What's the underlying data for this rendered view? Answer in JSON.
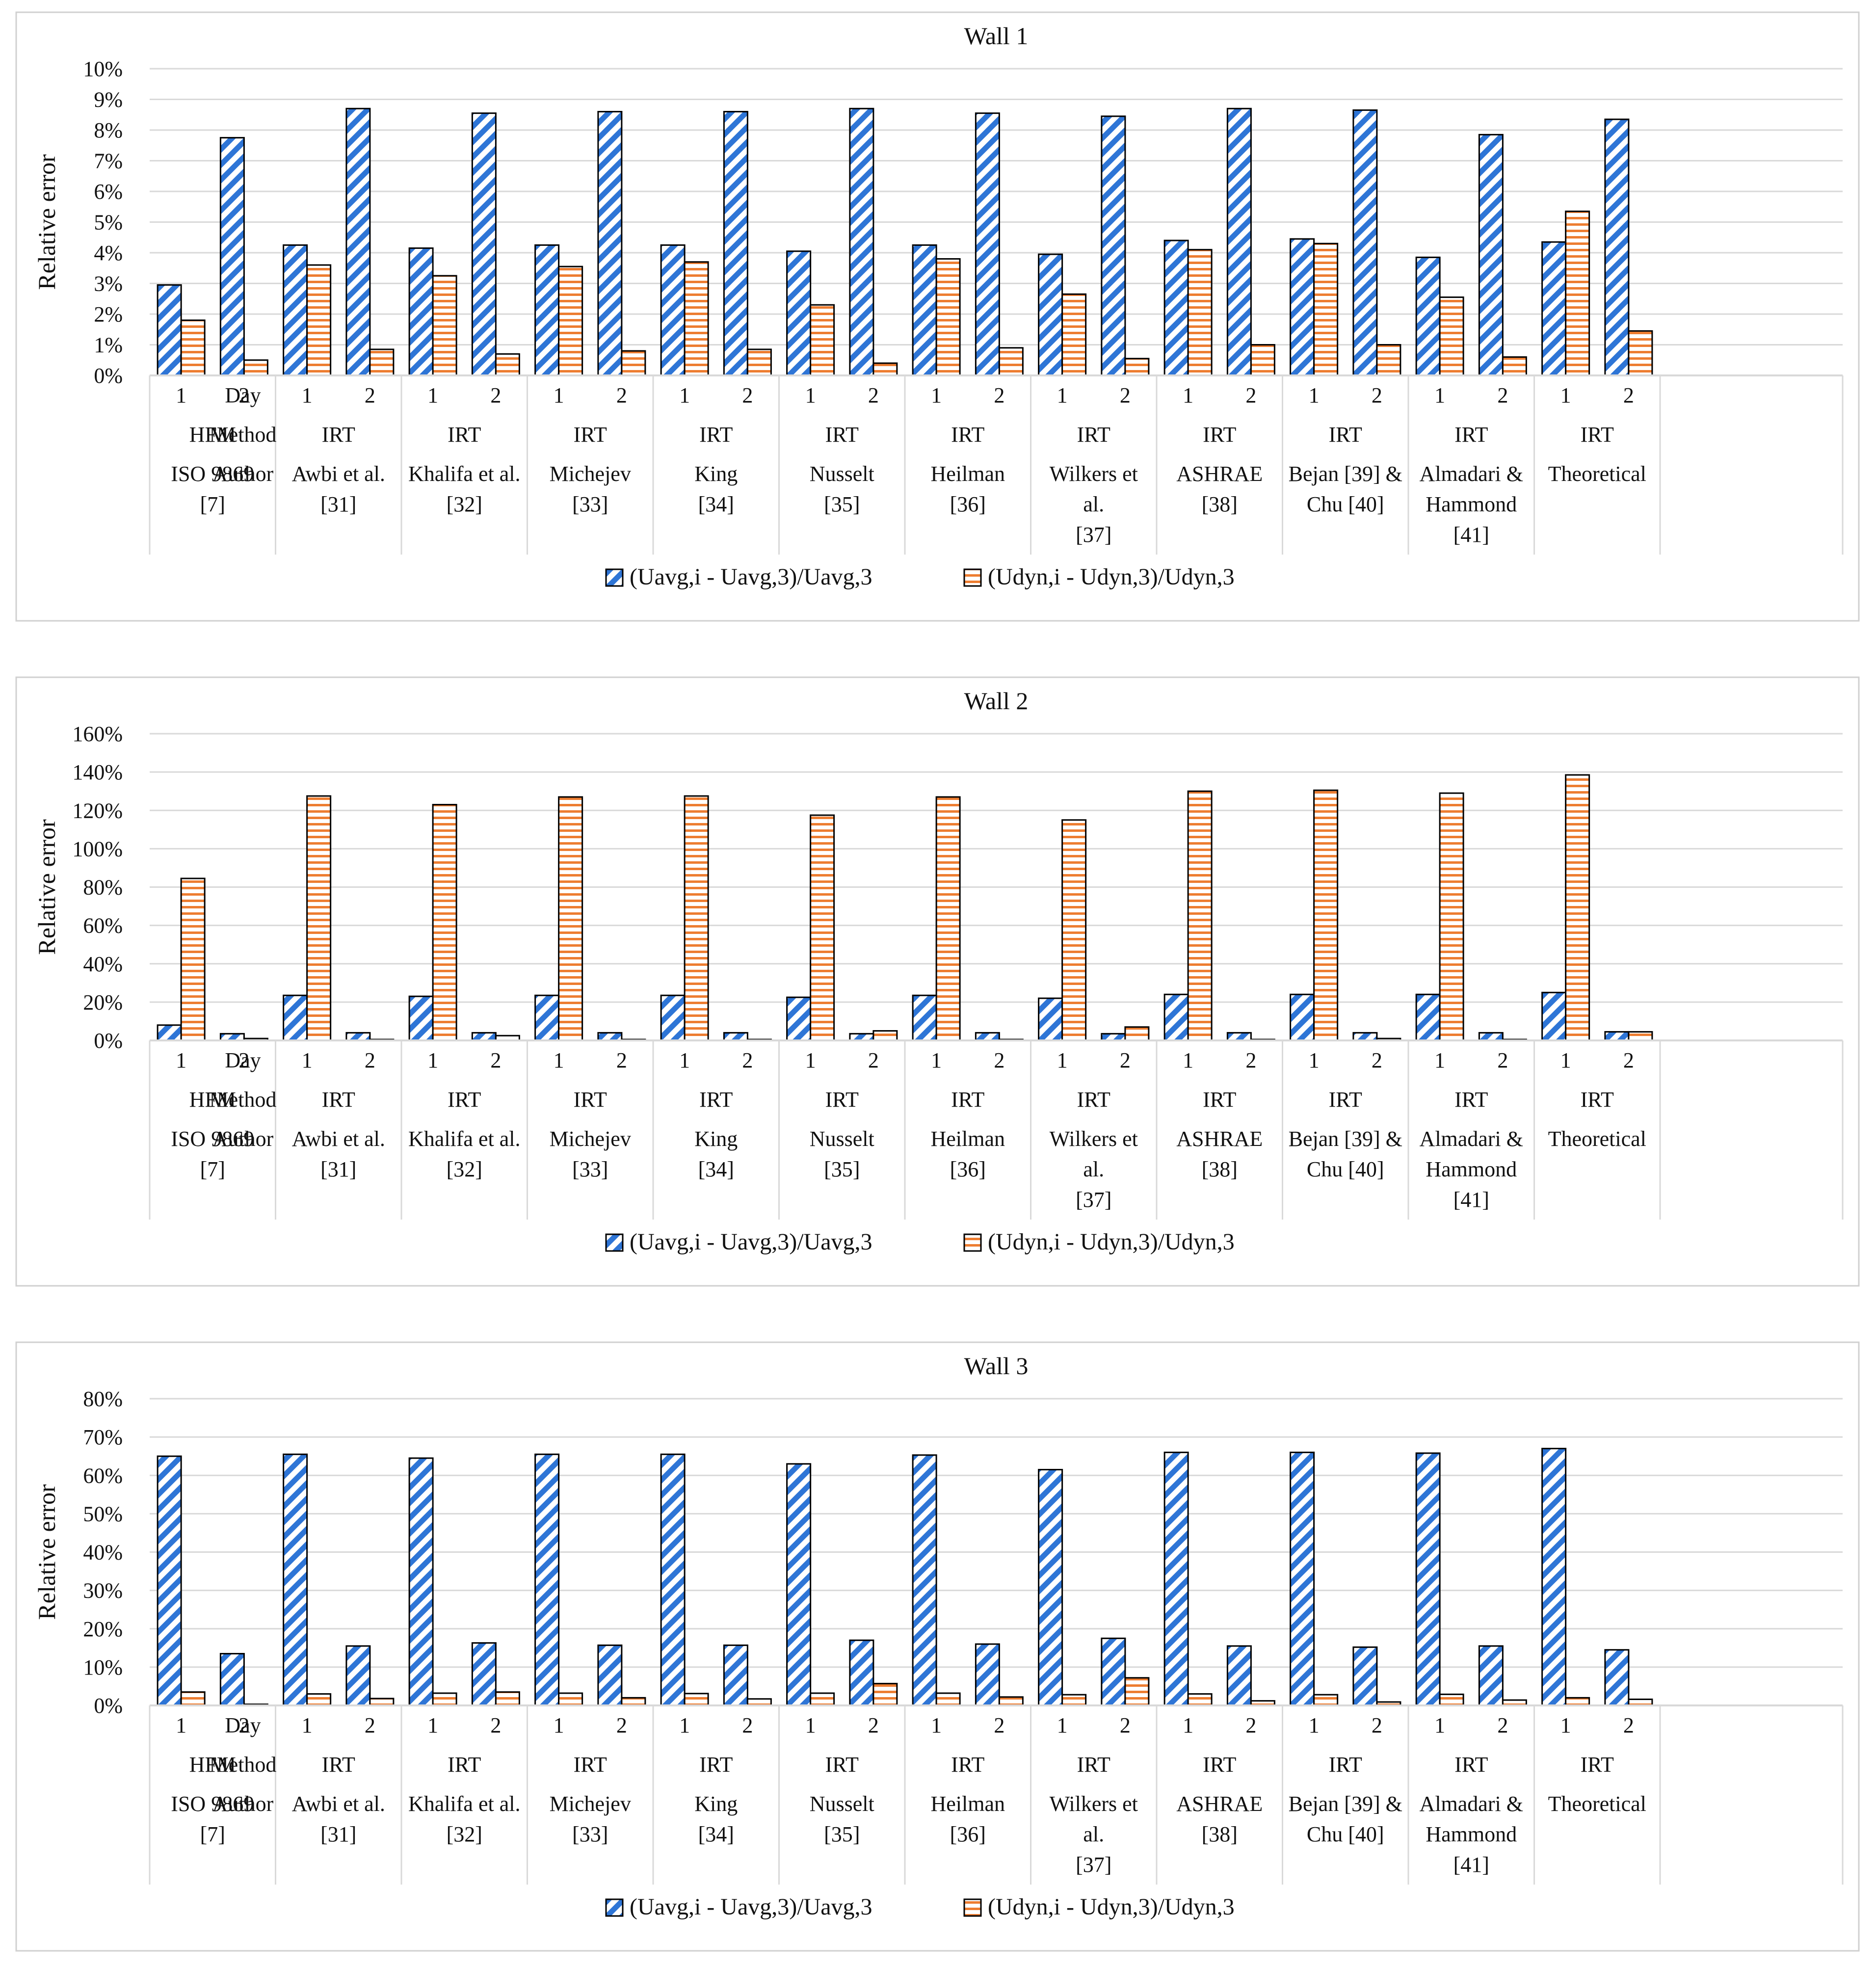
{
  "legend_labels": {
    "avg": "(Uavg,i - Uavg,3)/Uavg,3",
    "dyn": "(Udyn,i - Udyn,3)/Udyn,3"
  },
  "colors": {
    "avg": "#2e75d6",
    "dyn": "#ed7d31",
    "grid": "#d9d9d9",
    "border": "#d0d0d0",
    "bar_edge": "#000000"
  },
  "row_labels": [
    "Day",
    "Method",
    "Author"
  ],
  "days": [
    "1",
    "2"
  ],
  "groups": [
    {
      "method": "HFM",
      "author": [
        "ISO 9869",
        "[7]"
      ]
    },
    {
      "method": "IRT",
      "author": [
        "Awbi et al.",
        "[31]"
      ]
    },
    {
      "method": "IRT",
      "author": [
        "Khalifa et al.",
        "[32]"
      ]
    },
    {
      "method": "IRT",
      "author": [
        "Michejev",
        "[33]"
      ]
    },
    {
      "method": "IRT",
      "author": [
        "King",
        "[34]"
      ]
    },
    {
      "method": "IRT",
      "author": [
        "Nusselt",
        "[35]"
      ]
    },
    {
      "method": "IRT",
      "author": [
        "Heilman",
        "[36]"
      ]
    },
    {
      "method": "IRT",
      "author": [
        "Wilkers et",
        "al.",
        "[37]"
      ]
    },
    {
      "method": "IRT",
      "author": [
        "ASHRAE",
        "[38]"
      ]
    },
    {
      "method": "IRT",
      "author": [
        "Bejan [39] &",
        "Chu [40]"
      ]
    },
    {
      "method": "IRT",
      "author": [
        "Almadari &",
        "Hammond",
        "[41]"
      ]
    },
    {
      "method": "IRT",
      "author": [
        "Theoretical"
      ]
    }
  ],
  "chart_data": [
    {
      "type": "bar",
      "title": "Wall 1",
      "ylabel": "Relative error",
      "ylim": [
        0,
        10
      ],
      "ytick_step": 1,
      "yticks": [
        "0%",
        "1%",
        "2%",
        "3%",
        "4%",
        "5%",
        "6%",
        "7%",
        "8%",
        "9%",
        "10%"
      ],
      "series": [
        {
          "name": "(Uavg,i - Uavg,3)/Uavg,3",
          "values": [
            2.95,
            7.75,
            4.25,
            8.7,
            4.15,
            8.55,
            4.25,
            8.6,
            4.25,
            8.6,
            4.05,
            8.7,
            4.25,
            8.55,
            3.95,
            8.45,
            4.4,
            8.7,
            4.45,
            8.65,
            3.85,
            7.85,
            4.35,
            8.35
          ]
        },
        {
          "name": "(Udyn,i - Udyn,3)/Udyn,3",
          "values": [
            1.8,
            0.5,
            3.6,
            0.85,
            3.25,
            0.7,
            3.55,
            0.8,
            3.7,
            0.85,
            2.3,
            0.4,
            3.8,
            0.9,
            2.65,
            0.55,
            4.1,
            1.0,
            4.3,
            1.0,
            2.55,
            0.6,
            5.35,
            1.45
          ]
        }
      ]
    },
    {
      "type": "bar",
      "title": "Wall 2",
      "ylabel": "Relative error",
      "ylim": [
        0,
        160
      ],
      "ytick_step": 20,
      "yticks": [
        "0%",
        "20%",
        "40%",
        "60%",
        "80%",
        "100%",
        "120%",
        "140%",
        "160%"
      ],
      "series": [
        {
          "name": "(Uavg,i - Uavg,3)/Uavg,3",
          "values": [
            8,
            3.5,
            23.5,
            4,
            23,
            4,
            23.5,
            4,
            23.5,
            4,
            22.5,
            3.5,
            23.5,
            4,
            22,
            3.5,
            24,
            4,
            24,
            4,
            24,
            4,
            25,
            4.5
          ]
        },
        {
          "name": "(Udyn,i - Udyn,3)/Udyn,3",
          "values": [
            84.5,
            1,
            127.5,
            0.5,
            123,
            2.5,
            127,
            0.5,
            127.5,
            0.5,
            117.5,
            5,
            127,
            0.5,
            115,
            7,
            130,
            0.5,
            130.5,
            1,
            129,
            0.5,
            138.5,
            4.5
          ]
        }
      ]
    },
    {
      "type": "bar",
      "title": "Wall 3",
      "ylabel": "Relative error",
      "ylim": [
        0,
        80
      ],
      "ytick_step": 10,
      "yticks": [
        "0%",
        "10%",
        "20%",
        "30%",
        "40%",
        "50%",
        "60%",
        "70%",
        "80%"
      ],
      "series": [
        {
          "name": "(Uavg,i - Uavg,3)/Uavg,3",
          "values": [
            65,
            13.5,
            65.5,
            15.5,
            64.5,
            16.3,
            65.5,
            15.7,
            65.5,
            15.7,
            63,
            17,
            65.3,
            16,
            61.5,
            17.5,
            66,
            15.5,
            66,
            15.2,
            65.8,
            15.5,
            67,
            14.5
          ]
        },
        {
          "name": "(Udyn,i - Udyn,3)/Udyn,3",
          "values": [
            3.5,
            0.3,
            3,
            1.8,
            3.2,
            3.5,
            3.2,
            2,
            3.1,
            1.7,
            3.2,
            5.7,
            3.2,
            2.2,
            2.8,
            7.2,
            3,
            1.2,
            2.8,
            0.9,
            2.9,
            1.4,
            2,
            1.6
          ]
        }
      ]
    }
  ]
}
